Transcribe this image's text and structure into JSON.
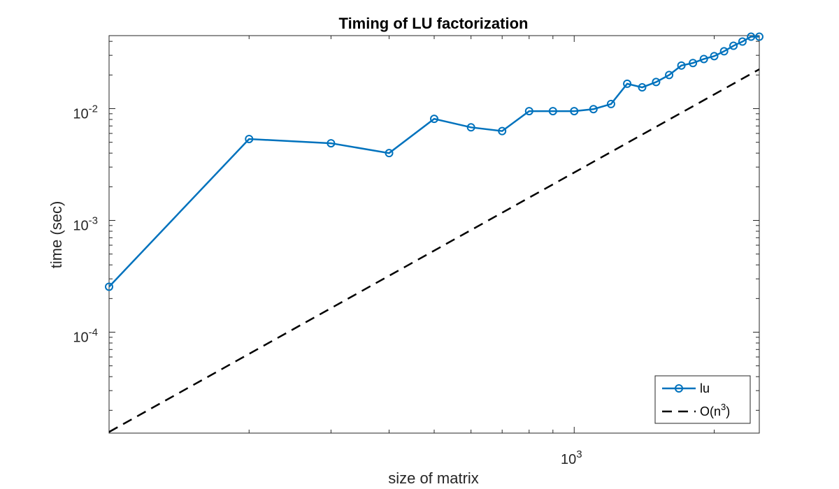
{
  "chart_data": {
    "type": "line",
    "title": "Timing of LU factorization",
    "xlabel": "size of matrix",
    "ylabel": "time (sec)",
    "xscale": "log",
    "yscale": "log",
    "xlim": [
      100,
      2500
    ],
    "ylim": [
      1.25e-05,
      0.045
    ],
    "x_ticks": [
      {
        "value": 1000,
        "base": "10",
        "exp": "3"
      }
    ],
    "y_ticks": [
      {
        "value": 0.0001,
        "base": "10",
        "exp": "-4"
      },
      {
        "value": 0.001,
        "base": "10",
        "exp": "-3"
      },
      {
        "value": 0.01,
        "base": "10",
        "exp": "-2"
      }
    ],
    "grid": false,
    "box": true,
    "legend_position": "bottom-right",
    "series": [
      {
        "name": "lu",
        "color": "#0072BD",
        "style": "solid",
        "marker": "circle",
        "x": [
          100,
          200,
          300,
          400,
          500,
          600,
          700,
          800,
          900,
          1000,
          1100,
          1200,
          1300,
          1400,
          1500,
          1600,
          1700,
          1800,
          1900,
          2000,
          2100,
          2200,
          2300,
          2400,
          2500
        ],
        "y": [
          0.000255,
          0.00535,
          0.0049,
          0.004,
          0.0081,
          0.0068,
          0.0063,
          0.0095,
          0.0095,
          0.0095,
          0.0099,
          0.011,
          0.0167,
          0.0155,
          0.0173,
          0.02,
          0.0243,
          0.0256,
          0.0278,
          0.0295,
          0.0326,
          0.0365,
          0.0398,
          0.044,
          0.044
        ]
      },
      {
        "name": "O(n",
        "name_sup": "3",
        "name_suffix": ")",
        "color": "#000000",
        "style": "dashed",
        "marker": "none",
        "x": [
          100,
          2500
        ],
        "y": [
          1.28e-05,
          0.0225
        ]
      }
    ]
  }
}
